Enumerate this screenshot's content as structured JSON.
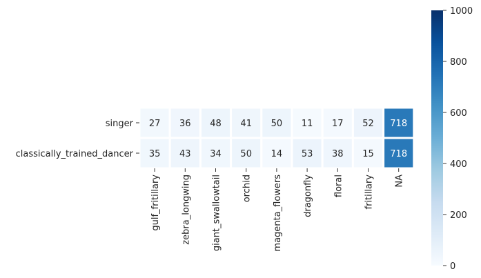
{
  "chart_data": {
    "type": "heatmap",
    "title": "",
    "xlabel": "",
    "ylabel": "",
    "rows": [
      "singer",
      "classically_trained_dancer"
    ],
    "columns": [
      "gulf_fritillary",
      "zebra_longwing",
      "giant_swallowtail",
      "orchid",
      "magenta_flowers",
      "dragonfly",
      "floral",
      "fritillary",
      "NA"
    ],
    "values": [
      [
        27,
        36,
        48,
        41,
        50,
        11,
        17,
        52,
        718
      ],
      [
        35,
        43,
        34,
        50,
        14,
        53,
        38,
        15,
        718
      ]
    ],
    "colorbar": {
      "range": [
        0,
        1000
      ],
      "ticks": [
        "0",
        "200",
        "400",
        "600",
        "800",
        "1000"
      ],
      "colormap": "Blues"
    },
    "annotations": true
  }
}
